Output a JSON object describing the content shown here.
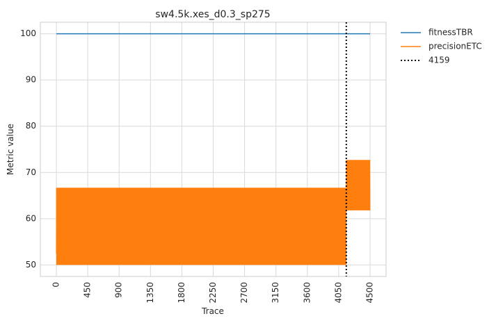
{
  "chart_data": {
    "type": "line",
    "title": "sw4.5k.xes_d0.3_sp275",
    "xlabel": "Trace",
    "ylabel": "Metric value",
    "xlim": [
      -230,
      4730
    ],
    "ylim": [
      47.5,
      102.5
    ],
    "x_ticks": [
      0,
      450,
      900,
      1350,
      1800,
      2250,
      2700,
      3150,
      3600,
      4050,
      4500
    ],
    "y_ticks": [
      50,
      60,
      70,
      80,
      90,
      100
    ],
    "grid": true,
    "legend_position": "outside-right",
    "series": [
      {
        "name": "fitnessTBR",
        "color": "#1f77b4",
        "style": "solid",
        "x": [
          0,
          4500
        ],
        "y": [
          100,
          100
        ]
      },
      {
        "name": "precisionETC",
        "color": "#ff7f0e",
        "style": "solid-oscillating",
        "segments": [
          {
            "x_start": 0,
            "x_end": 4159,
            "low": 50.0,
            "high": 66.7
          },
          {
            "x_start": 4159,
            "x_end": 4500,
            "low": 61.8,
            "high": 72.7
          }
        ]
      },
      {
        "name": "4159",
        "color": "#000000",
        "style": "dotted",
        "x": 4159,
        "orientation": "vertical"
      }
    ]
  }
}
